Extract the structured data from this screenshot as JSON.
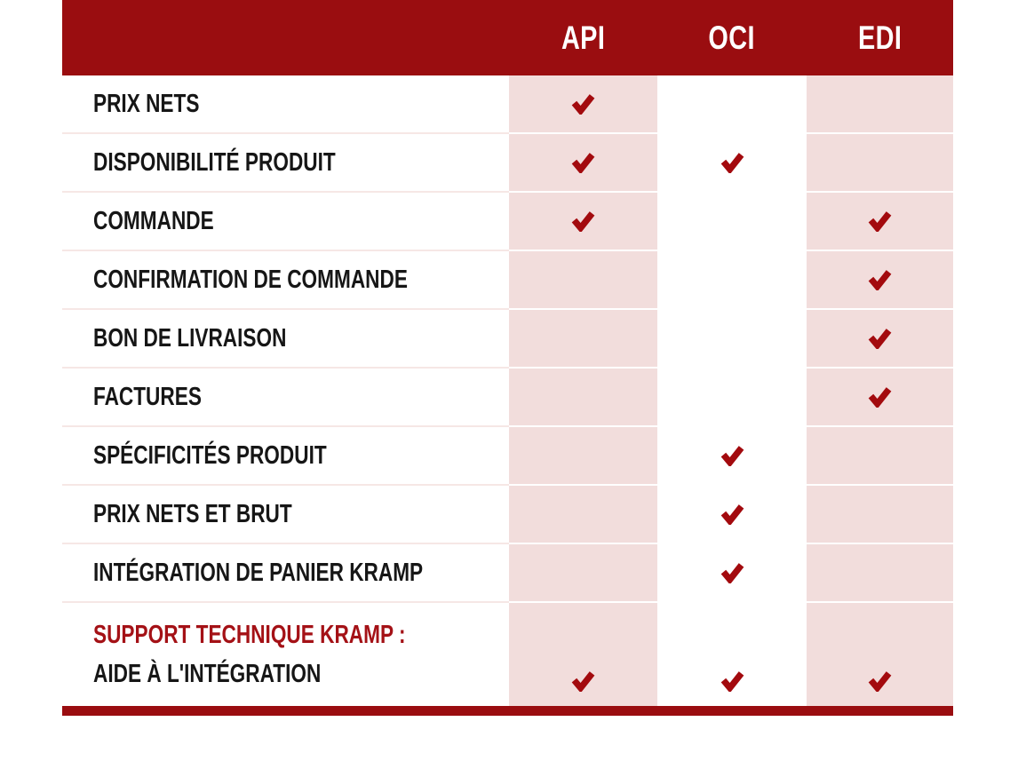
{
  "table": {
    "title": "integration-options-comparison",
    "columns": [
      {
        "key": "api",
        "label": "API"
      },
      {
        "key": "oci",
        "label": "OCI"
      },
      {
        "key": "edi",
        "label": "EDI"
      }
    ],
    "rows": [
      {
        "label": "PRIX NETS",
        "api": true,
        "oci": false,
        "edi": false
      },
      {
        "label": "DISPONIBILITÉ PRODUIT",
        "api": true,
        "oci": true,
        "edi": false
      },
      {
        "label": "COMMANDE",
        "api": true,
        "oci": false,
        "edi": true
      },
      {
        "label": "CONFIRMATION DE COMMANDE",
        "api": false,
        "oci": false,
        "edi": true
      },
      {
        "label": "BON DE LIVRAISON",
        "api": false,
        "oci": false,
        "edi": true
      },
      {
        "label": "FACTURES",
        "api": false,
        "oci": false,
        "edi": true
      },
      {
        "label": "SPÉCIFICITÉS PRODUIT",
        "api": false,
        "oci": true,
        "edi": false
      },
      {
        "label": "PRIX NETS ET BRUT",
        "api": false,
        "oci": true,
        "edi": false
      },
      {
        "label": "INTÉGRATION DE PANIER KRAMP",
        "api": false,
        "oci": true,
        "edi": false
      },
      {
        "label_line1": "SUPPORT TECHNIQUE KRAMP :",
        "label_line2": "AIDE À L'INTÉGRATION",
        "two_line": true,
        "api": true,
        "oci": true,
        "edi": true
      }
    ],
    "check_icon": "checkmark-icon",
    "colors": {
      "header_bg": "#9A0D10",
      "check": "#A30A0E",
      "pink_cell": "#F2DDDC",
      "divider": "#F6E7E5",
      "accent_text": "#A41116",
      "label_text": "#161616",
      "bottom_bar": "#9A0D10"
    }
  }
}
